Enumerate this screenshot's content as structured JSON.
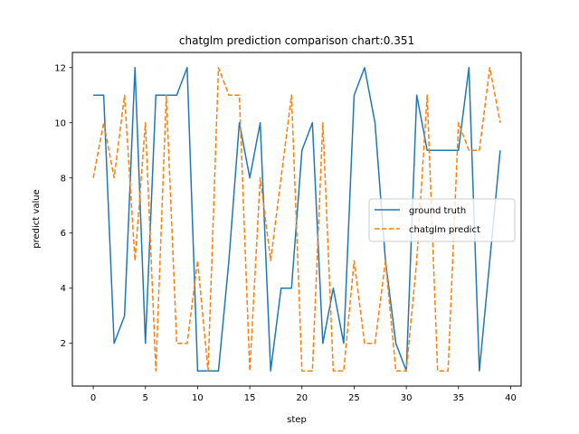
{
  "chart_data": {
    "type": "line",
    "title": "chatglm prediction comparison chart:0.351",
    "xlabel": "step",
    "ylabel": "predict value",
    "xlim": [
      -2,
      41
    ],
    "ylim": [
      0.45,
      12.55
    ],
    "xticks": [
      0,
      5,
      10,
      15,
      20,
      25,
      30,
      35,
      40
    ],
    "yticks": [
      2,
      4,
      6,
      8,
      10,
      12
    ],
    "grid": false,
    "legend_position": "center-right",
    "x": [
      0,
      1,
      2,
      3,
      4,
      5,
      6,
      7,
      8,
      9,
      10,
      11,
      12,
      13,
      14,
      15,
      16,
      17,
      18,
      19,
      20,
      21,
      22,
      23,
      24,
      25,
      26,
      27,
      28,
      29,
      30,
      31,
      32,
      33,
      34,
      35,
      36,
      37,
      38,
      39
    ],
    "series": [
      {
        "name": "ground truth",
        "color": "#1f77b4",
        "style": "solid",
        "values": [
          11,
          11,
          2,
          3,
          12,
          2,
          11,
          11,
          11,
          12,
          1,
          1,
          1,
          5,
          10,
          8,
          10,
          1,
          4,
          4,
          9,
          10,
          2,
          4,
          2,
          11,
          12,
          10,
          5,
          2,
          1,
          11,
          9,
          9,
          9,
          9,
          12,
          1,
          5,
          9
        ]
      },
      {
        "name": "chatglm predict",
        "color": "#ff7f0e",
        "style": "dashed",
        "values": [
          8,
          10,
          8,
          11,
          5,
          10,
          1,
          11,
          2,
          2,
          5,
          1,
          12,
          11,
          11,
          1,
          8,
          5,
          8,
          11,
          1,
          1,
          10,
          1,
          1,
          5,
          2,
          2,
          5,
          1,
          1,
          5,
          11,
          1,
          1,
          10,
          9,
          9,
          12,
          10
        ]
      }
    ]
  }
}
